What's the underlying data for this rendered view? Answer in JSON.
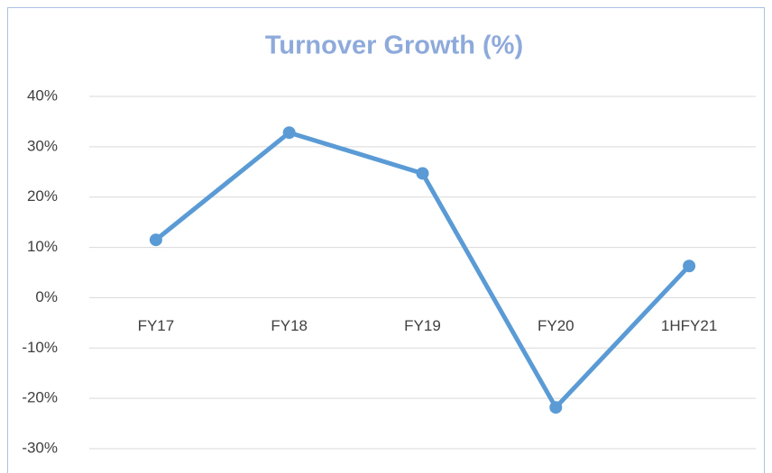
{
  "chart_data": {
    "type": "line",
    "title": "Turnover Growth (%)",
    "categories": [
      "FY17",
      "FY18",
      "FY19",
      "FY20",
      "1HFY21"
    ],
    "series": [
      {
        "name": "Turnover Growth",
        "color": "#5b9bd5",
        "values": [
          11.5,
          32.8,
          24.7,
          -21.8,
          6.3
        ]
      }
    ],
    "ylim": [
      -30,
      40
    ],
    "yticks": [
      {
        "value": -30,
        "label": "-30%"
      },
      {
        "value": -20,
        "label": "-20%"
      },
      {
        "value": -10,
        "label": "-10%"
      },
      {
        "value": 0,
        "label": "0%"
      },
      {
        "value": 10,
        "label": "10%"
      },
      {
        "value": 20,
        "label": "20%"
      },
      {
        "value": 30,
        "label": "30%"
      },
      {
        "value": 40,
        "label": "40%"
      }
    ],
    "grid": true
  }
}
